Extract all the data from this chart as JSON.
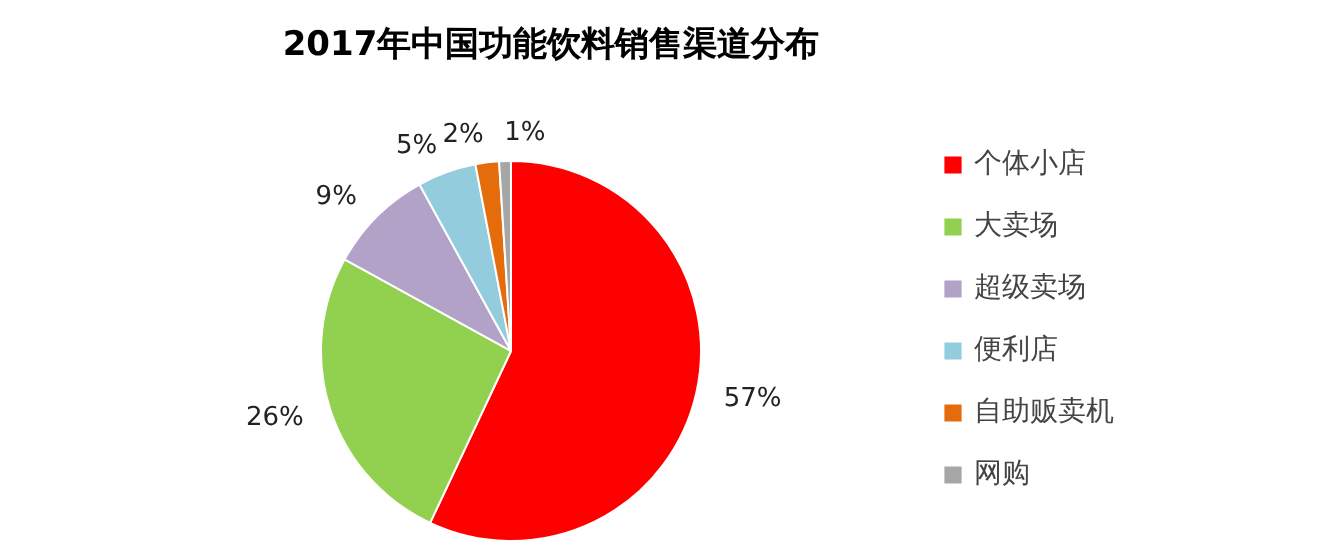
{
  "chart_data": {
    "type": "pie",
    "title": "2017年中国功能饮料销售渠道分布",
    "categories": [
      "个体小店",
      "大卖场",
      "超级卖场",
      "便利店",
      "自助贩卖机",
      "网购"
    ],
    "values": [
      57,
      26,
      9,
      5,
      2,
      1
    ],
    "colors": [
      "#ff0000",
      "#92d050",
      "#b3a2c7",
      "#93cddd",
      "#e46c0a",
      "#a6a6a6"
    ],
    "value_labels": [
      "57%",
      "26%",
      "9%",
      "5%",
      "2%",
      "1%"
    ],
    "legend": "right"
  }
}
